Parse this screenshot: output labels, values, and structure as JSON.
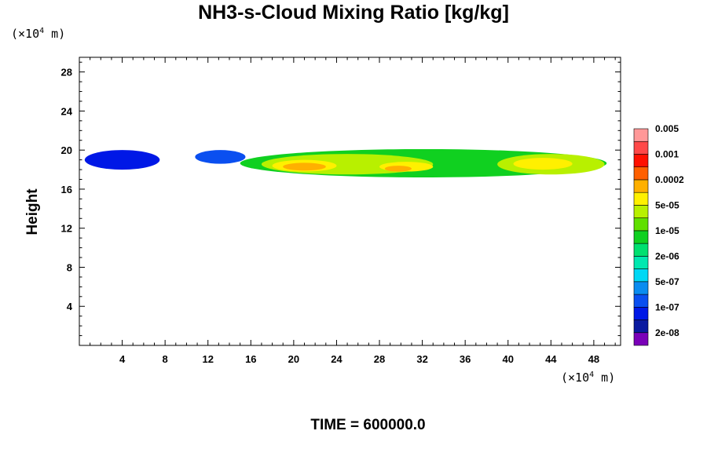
{
  "chart_data": {
    "type": "heatmap",
    "title": "NH3-s-Cloud Mixing Ratio [kg/kg]",
    "ylabel": "Height",
    "x_unit": {
      "prefix": "(×10",
      "exp": "4",
      "suffix": " m)"
    },
    "y_unit": {
      "prefix": "(×10",
      "exp": "4",
      "suffix": " m)"
    },
    "footer": "TIME = 600000.0",
    "xlim": [
      0,
      50.5
    ],
    "ylim": [
      0,
      29.5
    ],
    "xticks": [
      4,
      8,
      12,
      16,
      20,
      24,
      28,
      32,
      36,
      40,
      44,
      48
    ],
    "yticks": [
      4,
      8,
      12,
      16,
      20,
      24,
      28
    ],
    "colorbar": {
      "colors": [
        "#7a00b8",
        "#0a1aa0",
        "#0018e6",
        "#0a4ff0",
        "#0a8cf0",
        "#00d8f5",
        "#00e8b0",
        "#00e070",
        "#10d020",
        "#60e000",
        "#b8f000",
        "#fff000",
        "#ffb000",
        "#ff6000",
        "#ff1000",
        "#ff4848",
        "#ff9898"
      ],
      "labels": [
        "2e-08",
        "1e-07",
        "5e-07",
        "2e-06",
        "1e-05",
        "5e-05",
        "0.0002",
        "0.001",
        "0.005"
      ]
    },
    "cloud_regions": [
      {
        "x0": 0.5,
        "x1": 7.5,
        "y0": 18.0,
        "y1": 20.0,
        "level": 2
      },
      {
        "x0": 10.8,
        "x1": 15.5,
        "y0": 18.6,
        "y1": 20.0,
        "level": 3
      },
      {
        "x0": 15.0,
        "x1": 49.2,
        "y0": 17.2,
        "y1": 20.1,
        "level": 8
      },
      {
        "x0": 17.0,
        "x1": 33.0,
        "y0": 17.5,
        "y1": 19.6,
        "level": 10
      },
      {
        "x0": 18.0,
        "x1": 24.0,
        "y0": 17.8,
        "y1": 19.0,
        "level": 11
      },
      {
        "x0": 28.0,
        "x1": 33.0,
        "y0": 17.8,
        "y1": 18.8,
        "level": 11
      },
      {
        "x0": 39.0,
        "x1": 49.0,
        "y0": 17.5,
        "y1": 19.6,
        "level": 10
      },
      {
        "x0": 40.5,
        "x1": 46.0,
        "y0": 18.0,
        "y1": 19.2,
        "level": 11
      },
      {
        "x0": 19.0,
        "x1": 23.0,
        "y0": 17.9,
        "y1": 18.7,
        "level": 12
      },
      {
        "x0": 28.5,
        "x1": 31.0,
        "y0": 17.8,
        "y1": 18.4,
        "level": 12
      }
    ]
  }
}
